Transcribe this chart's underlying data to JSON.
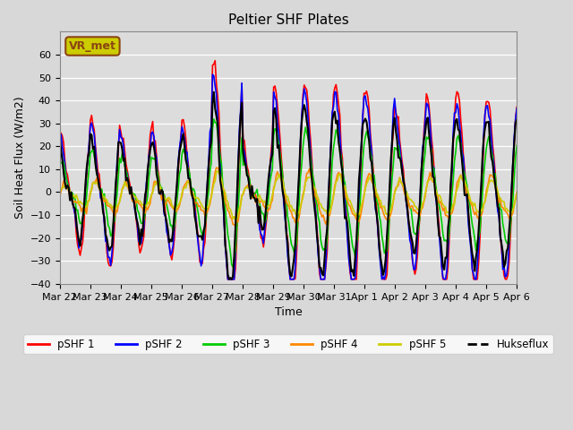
{
  "title": "Peltier SHF Plates",
  "xlabel": "Time",
  "ylabel": "Soil Heat Flux (W/m2)",
  "ylim": [
    -40,
    70
  ],
  "yticks": [
    -40,
    -30,
    -20,
    -10,
    0,
    10,
    20,
    30,
    40,
    50,
    60
  ],
  "background_color": "#d8d8d8",
  "plot_bg_color": "#dcdcdc",
  "annotation_text": "VR_met",
  "annotation_bg": "#cccc00",
  "annotation_border": "#8B4513",
  "series_colors": {
    "pSHF 1": "#ff0000",
    "pSHF 2": "#0000ff",
    "pSHF 3": "#00cc00",
    "pSHF 4": "#ff8800",
    "pSHF 5": "#cccc00",
    "Hukseflux": "#000000"
  },
  "x_tick_labels": [
    "Mar 22",
    "Mar 23",
    "Mar 24",
    "Mar 25",
    "Mar 26",
    "Mar 27",
    "Mar 28",
    "Mar 29",
    "Mar 30",
    "Mar 31",
    "Apr 1",
    "Apr 2",
    "Apr 3",
    "Apr 4",
    "Apr 5",
    "Apr 6"
  ],
  "n_points": 360,
  "days": 15
}
